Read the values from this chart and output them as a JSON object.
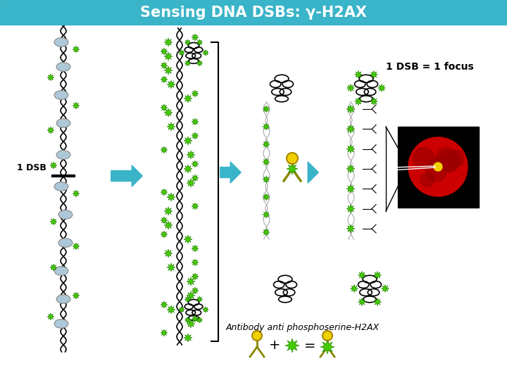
{
  "title": "Sensing DNA DSBs: γ-H2AX",
  "title_bg_color": "#3ab4c8",
  "title_text_color": "#ffffff",
  "bg_color": "#ffffff",
  "label_1dsb": "1 DSB",
  "label_focus": "1 DSB = 1 focus",
  "label_antibody": "Antibody anti phosphoserine-H2AX",
  "arrow_color": "#3ab4c8",
  "green_star_color": "#44cc00",
  "yellow_circle_color": "#f0d000",
  "nucleosome_color": "#adc8d8",
  "dna_color": "#000000",
  "condensed_color": "#000000"
}
